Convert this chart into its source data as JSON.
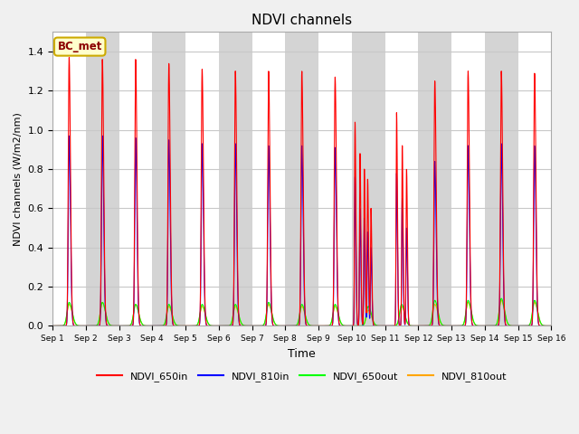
{
  "title": "NDVI channels",
  "xlabel": "Time",
  "ylabel": "NDVI channels (W/m2/nm)",
  "annotation_text": "BC_met",
  "legend_labels": [
    "NDVI_650in",
    "NDVI_810in",
    "NDVI_650out",
    "NDVI_810out"
  ],
  "line_colors": [
    "red",
    "blue",
    "lime",
    "orange"
  ],
  "ylim": [
    0,
    1.5
  ],
  "figsize": [
    6.4,
    4.8
  ],
  "dpi": 100,
  "background_color": "#f0f0f0",
  "plot_bg_color": "#e8e8e8",
  "tick_labels": [
    "Sep 1",
    "Sep 2",
    "Sep 3",
    "Sep 4",
    "Sep 5",
    "Sep 6",
    "Sep 7",
    "Sep 8",
    "Sep 9",
    "Sep 10",
    "Sep 11",
    "Sep 12",
    "Sep 13",
    "Sep 14",
    "Sep 15",
    "Sep 16"
  ],
  "peaks": {
    "day": [
      1,
      2,
      3,
      4,
      5,
      6,
      7,
      8,
      9,
      10,
      11,
      12,
      13,
      14,
      15
    ],
    "p650in": [
      1.37,
      1.36,
      1.36,
      1.34,
      1.31,
      1.3,
      1.3,
      1.3,
      1.27,
      1.03,
      1.09,
      1.25,
      1.3,
      1.3,
      1.29
    ],
    "p810in": [
      0.97,
      0.97,
      0.96,
      0.95,
      0.93,
      0.93,
      0.92,
      0.92,
      0.91,
      0.76,
      0.78,
      0.84,
      0.92,
      0.93,
      0.92
    ],
    "p650out": [
      0.12,
      0.12,
      0.11,
      0.11,
      0.11,
      0.11,
      0.12,
      0.11,
      0.11,
      0.1,
      0.11,
      0.13,
      0.13,
      0.14,
      0.13
    ],
    "p810out": [
      0.11,
      0.12,
      0.11,
      0.1,
      0.1,
      0.1,
      0.11,
      0.1,
      0.1,
      0.08,
      0.1,
      0.11,
      0.12,
      0.13,
      0.12
    ]
  },
  "disruption": {
    "day10_650in_extra": [
      1.04,
      0.88,
      0.8,
      0.75,
      0.6
    ],
    "day10_810in_extra": [
      0.76,
      0.6,
      0.55,
      0.48,
      0.4
    ],
    "day11_650in_extra": [
      1.09,
      0.92,
      0.8
    ],
    "day11_810in_extra": [
      0.78,
      0.65,
      0.5
    ]
  },
  "band_colors": [
    "#ffffff",
    "#d4d4d4"
  ],
  "grid_color": "#c8c8c8",
  "pulse_rise": 0.025,
  "pulse_fall": 0.04,
  "pulse_out_rise": 0.06,
  "pulse_out_fall": 0.09
}
